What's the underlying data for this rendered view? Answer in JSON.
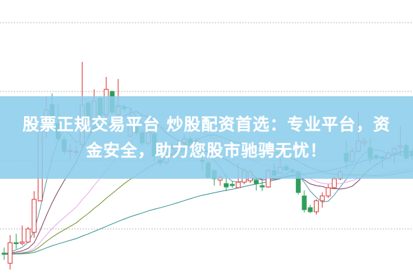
{
  "banner": {
    "line1": "股票正规交易平台 炒股配资首选：专业平台，资",
    "line2": "金安全，助力您股市驰骋无忧！"
  },
  "colors": {
    "up": "#d9302c",
    "down": "#2e9e5b",
    "grid": "#b8b8b8",
    "banner": "#8ccdeb"
  },
  "chart_data": {
    "type": "candlestick",
    "title": "",
    "xlabel": "",
    "ylabel": "",
    "ylim": [
      0,
      100
    ],
    "grid": true,
    "grid_values": [
      16.75,
      41.75,
      66.75,
      91.75
    ],
    "candles_ohlc": [
      [
        8,
        7.5,
        10,
        5.5
      ],
      [
        4.25,
        11.75,
        14.5,
        2
      ],
      [
        11.75,
        11.5,
        15,
        9.5
      ],
      [
        11.5,
        12,
        18,
        10.75
      ],
      [
        12,
        16.75,
        17.5,
        11.75
      ],
      [
        15.5,
        27.5,
        30.5,
        13.5
      ],
      [
        27,
        52.5,
        54.25,
        26.75
      ],
      [
        52,
        60,
        65,
        50
      ],
      [
        62,
        56,
        66,
        54
      ],
      [
        55,
        49.5,
        62,
        48.75
      ],
      [
        49.25,
        45,
        50.5,
        44
      ],
      [
        45,
        45.25,
        47.5,
        42
      ],
      [
        45,
        45,
        47,
        43
      ],
      [
        47.5,
        61.75,
        77.5,
        45.75
      ],
      [
        62.5,
        56.25,
        63.25,
        55.5
      ],
      [
        55.75,
        63.25,
        67.5,
        54
      ],
      [
        64.25,
        58.25,
        65,
        57.5
      ],
      [
        58.25,
        67.5,
        72,
        57
      ],
      [
        66.75,
        59.25,
        67,
        58.5
      ],
      [
        58.25,
        61.25,
        71.25,
        57.5
      ],
      [
        61,
        60.5,
        62,
        59.5
      ],
      [
        50.5,
        55,
        60.75,
        50
      ],
      [
        53.75,
        51.75,
        55,
        50.5
      ],
      [
        51.75,
        48,
        52.5,
        47
      ],
      [
        48,
        52,
        53,
        47
      ],
      [
        51.25,
        43.25,
        52,
        41
      ],
      [
        41.75,
        40.75,
        43,
        39.5
      ],
      [
        41,
        44,
        46,
        40
      ],
      [
        44,
        46,
        48,
        43
      ],
      [
        46.25,
        47.5,
        49,
        45
      ],
      [
        48,
        49.5,
        51,
        47
      ],
      [
        49.5,
        48,
        50.5,
        46
      ],
      [
        48.5,
        48.75,
        50,
        47.5
      ],
      [
        41.75,
        41.25,
        43.75,
        38.25
      ],
      [
        40.75,
        35.5,
        41.5,
        35
      ],
      [
        38,
        35,
        38.5,
        32.5
      ],
      [
        34.5,
        35.5,
        36.25,
        32.5
      ],
      [
        33.25,
        32,
        36.75,
        30.5
      ],
      [
        33,
        32.5,
        34,
        31.75
      ],
      [
        31.75,
        33.75,
        40.75,
        31.75
      ],
      [
        33.75,
        38,
        39,
        33
      ],
      [
        34.25,
        37.5,
        38.5,
        33.5
      ],
      [
        34.5,
        33.25,
        35,
        30.75
      ],
      [
        32.5,
        32,
        34.25,
        30.5
      ],
      [
        32,
        38,
        38.75,
        31.75
      ],
      [
        38,
        36.25,
        40.75,
        35.75
      ],
      [
        37,
        39.25,
        42.5,
        36.75
      ],
      [
        39.5,
        38.25,
        40.5,
        37.5
      ],
      [
        38,
        37.5,
        39,
        37
      ],
      [
        37.5,
        30,
        38,
        29.25
      ],
      [
        28.75,
        23.75,
        30.75,
        22.75
      ],
      [
        24.5,
        23,
        25.5,
        22.5
      ],
      [
        23,
        27,
        27.5,
        22
      ],
      [
        27,
        28.75,
        30,
        24.5
      ],
      [
        28.75,
        31.75,
        33,
        28
      ],
      [
        31.75,
        35,
        35.75,
        31.25
      ],
      [
        35,
        37.5,
        38.5,
        34.5
      ],
      [
        44.25,
        41.25,
        48.75,
        38.25
      ],
      [
        41.25,
        45,
        46.25,
        40.75
      ],
      [
        45,
        48.75,
        59.5,
        44.5
      ],
      [
        48,
        48.75,
        50,
        46.75
      ],
      [
        46.25,
        42.5,
        50,
        40.5
      ],
      [
        43.5,
        42.5,
        44,
        42
      ],
      [
        42.75,
        42.5,
        43,
        38.75
      ],
      [
        42.5,
        44.25,
        45,
        42
      ],
      [
        44.25,
        46,
        46.5,
        40.5
      ],
      [
        46.5,
        47,
        54.25,
        43.25
      ],
      [
        47,
        42.5,
        48,
        42
      ],
      [
        45,
        43.5,
        46,
        42
      ]
    ],
    "moving_averages": [
      {
        "period": 5,
        "color": "#4f97ad"
      },
      {
        "period": 10,
        "color": "#7a3b5a"
      },
      {
        "period": 20,
        "color": "#e7a6e6"
      },
      {
        "period": 30,
        "color": "#6b8e23"
      },
      {
        "period": 60,
        "color": "#2f8f8f"
      }
    ]
  }
}
